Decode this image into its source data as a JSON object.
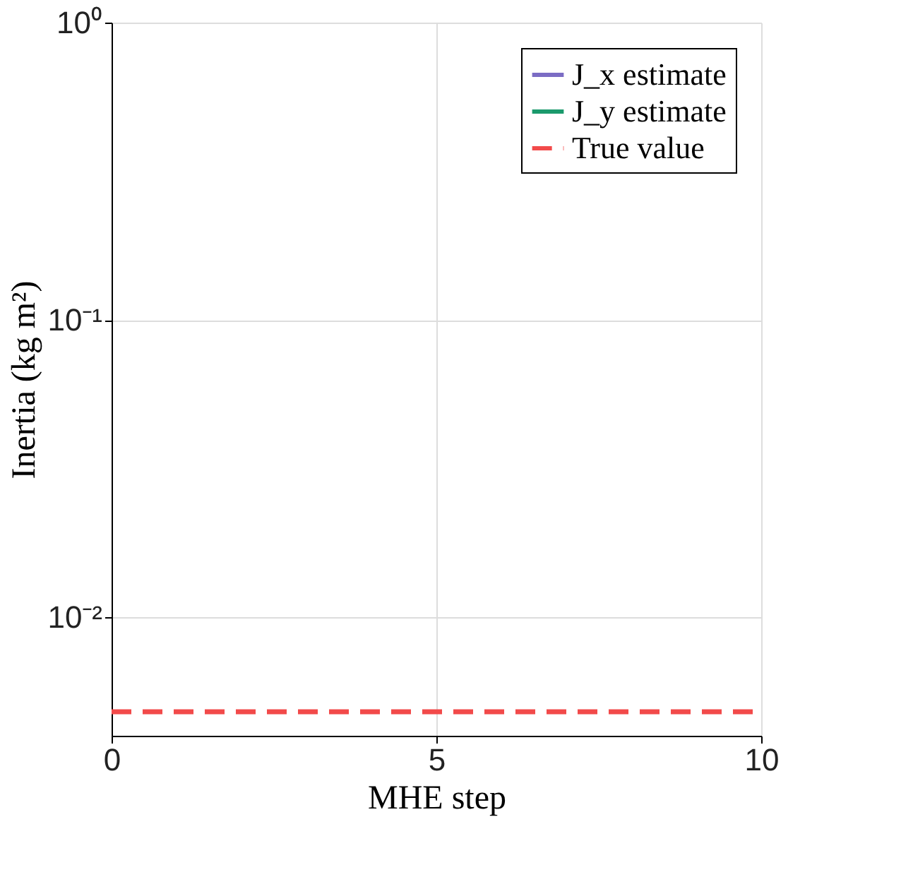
{
  "chart_data": {
    "type": "line",
    "xlabel": "MHE step",
    "ylabel": "Inertia (kg m²)",
    "x": [
      0,
      10
    ],
    "series": [
      {
        "name": "J_x estimate",
        "color": "#7b6cc4",
        "values": [
          null,
          null
        ],
        "line_style": "solid"
      },
      {
        "name": "J_y estimate",
        "color": "#1b9a6c",
        "values": [
          null,
          null
        ],
        "line_style": "solid"
      },
      {
        "name": "True value",
        "color": "#f24a4a",
        "values": [
          0.00482,
          0.00482
        ],
        "line_style": "dashed"
      }
    ],
    "log": true,
    "xlim": [
      0,
      10
    ],
    "xticks": [
      0,
      5,
      10
    ],
    "ylim": [
      0.004,
      1
    ],
    "yticks": [
      {
        "value": 0.01,
        "label": "10⁻²"
      },
      {
        "value": 0.1,
        "label": "10⁻¹"
      },
      {
        "value": 1,
        "label": "10⁰"
      }
    ],
    "grid": true,
    "legend": "top right",
    "marker": "none"
  }
}
